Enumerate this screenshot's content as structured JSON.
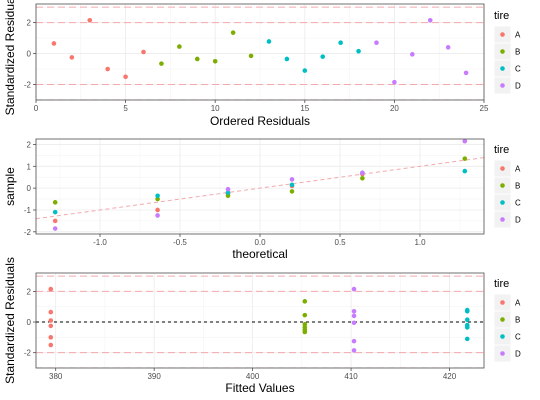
{
  "chart_data": [
    {
      "type": "scatter",
      "xlabel": "Ordered Residuals",
      "ylabel": "Standardized Residuals",
      "xlim": [
        0,
        25
      ],
      "ylim": [
        -3.0,
        3.2
      ],
      "x_ticks": [
        0,
        5,
        10,
        15,
        20,
        25
      ],
      "y_ticks": [
        -2,
        0,
        2
      ],
      "hlines": [
        {
          "y": 2,
          "style": "long-dash",
          "color": "#f4a9ad"
        },
        {
          "y": -2,
          "style": "long-dash",
          "color": "#f4a9ad"
        },
        {
          "y": 3,
          "style": "long-dash",
          "color": "#f4a9ad"
        },
        {
          "y": -3,
          "style": "long-dash",
          "color": "#f4a9ad"
        }
      ],
      "legend": {
        "title": "tire",
        "position": "right",
        "entries": [
          "A",
          "B",
          "C",
          "D"
        ]
      },
      "grid": true,
      "series": [
        {
          "name": "A",
          "color": "#f8766d",
          "points": [
            [
              1,
              0.65
            ],
            [
              2,
              -0.25
            ],
            [
              3,
              2.15
            ],
            [
              4,
              -1.0
            ],
            [
              5,
              -1.5
            ],
            [
              6,
              0.1
            ]
          ]
        },
        {
          "name": "B",
          "color": "#7cae00",
          "points": [
            [
              7,
              -0.65
            ],
            [
              8,
              0.45
            ],
            [
              9,
              -0.35
            ],
            [
              10,
              -0.5
            ],
            [
              11,
              1.35
            ],
            [
              12,
              -0.15
            ]
          ]
        },
        {
          "name": "C",
          "color": "#00bfc4",
          "points": [
            [
              13,
              0.78
            ],
            [
              14,
              -0.35
            ],
            [
              15,
              -1.1
            ],
            [
              16,
              -0.2
            ],
            [
              17,
              0.7
            ],
            [
              18,
              0.15
            ]
          ]
        },
        {
          "name": "D",
          "color": "#c77cff",
          "points": [
            [
              19,
              0.7
            ],
            [
              20,
              -1.85
            ],
            [
              21,
              -0.05
            ],
            [
              22,
              2.15
            ],
            [
              23,
              0.4
            ],
            [
              24,
              -1.25
            ]
          ]
        }
      ]
    },
    {
      "type": "scatter",
      "xlabel": "theoretical",
      "ylabel": "sample",
      "xlim": [
        -1.4,
        1.4
      ],
      "ylim": [
        -2.1,
        2.25
      ],
      "x_ticks": [
        -1.0,
        -0.5,
        0.0,
        0.5,
        1.0
      ],
      "x_tick_labels": [
        "-1.0",
        "-0.5",
        "0.0",
        "0.5",
        "1.0"
      ],
      "y_ticks": [
        -2,
        -1,
        0,
        1,
        2
      ],
      "reference_line": {
        "slope": 1,
        "intercept": 0,
        "style": "dashed",
        "color": "#f4a9ad"
      },
      "legend": {
        "title": "tire",
        "position": "right",
        "entries": [
          "A",
          "B",
          "C",
          "D"
        ]
      },
      "grid": true,
      "series": [
        {
          "name": "A",
          "color": "#f8766d",
          "points": [
            [
              -1.28,
              -1.5
            ],
            [
              -0.64,
              -1.0
            ],
            [
              -0.2,
              -0.25
            ],
            [
              0.2,
              0.1
            ],
            [
              0.64,
              0.65
            ],
            [
              1.28,
              2.15
            ]
          ]
        },
        {
          "name": "B",
          "color": "#7cae00",
          "points": [
            [
              -1.28,
              -0.65
            ],
            [
              -0.64,
              -0.5
            ],
            [
              -0.2,
              -0.35
            ],
            [
              0.2,
              -0.15
            ],
            [
              0.64,
              0.45
            ],
            [
              1.28,
              1.35
            ]
          ]
        },
        {
          "name": "C",
          "color": "#00bfc4",
          "points": [
            [
              -1.28,
              -1.1
            ],
            [
              -0.64,
              -0.35
            ],
            [
              -0.2,
              -0.2
            ],
            [
              0.2,
              0.15
            ],
            [
              0.64,
              0.7
            ],
            [
              1.28,
              0.78
            ]
          ]
        },
        {
          "name": "D",
          "color": "#c77cff",
          "points": [
            [
              -1.28,
              -1.85
            ],
            [
              -0.64,
              -1.25
            ],
            [
              -0.2,
              -0.05
            ],
            [
              0.2,
              0.4
            ],
            [
              0.64,
              0.7
            ],
            [
              1.28,
              2.15
            ]
          ]
        }
      ]
    },
    {
      "type": "scatter",
      "xlabel": "Fitted Values",
      "ylabel": "Standardized Residuals",
      "xlim": [
        378.0,
        423.5
      ],
      "ylim": [
        -3.0,
        3.2
      ],
      "x_ticks": [
        380,
        390,
        400,
        410,
        420
      ],
      "y_ticks": [
        -2,
        0,
        2
      ],
      "hlines": [
        {
          "y": 0,
          "style": "dashed",
          "color": "#000000"
        },
        {
          "y": 2,
          "style": "long-dash",
          "color": "#f4a9ad"
        },
        {
          "y": -2,
          "style": "long-dash",
          "color": "#f4a9ad"
        },
        {
          "y": 3,
          "style": "long-dash",
          "color": "#f4a9ad"
        },
        {
          "y": -3,
          "style": "long-dash",
          "color": "#f4a9ad"
        }
      ],
      "legend": {
        "title": "tire",
        "position": "right",
        "entries": [
          "A",
          "B",
          "C",
          "D"
        ]
      },
      "grid": true,
      "series": [
        {
          "name": "A",
          "color": "#f8766d",
          "points": [
            [
              379.5,
              2.15
            ],
            [
              379.5,
              0.65
            ],
            [
              379.5,
              0.1
            ],
            [
              379.5,
              -0.25
            ],
            [
              379.5,
              -1.0
            ],
            [
              379.5,
              -1.5
            ]
          ]
        },
        {
          "name": "B",
          "color": "#7cae00",
          "points": [
            [
              405.3,
              1.35
            ],
            [
              405.3,
              0.45
            ],
            [
              405.3,
              -0.15
            ],
            [
              405.3,
              -0.35
            ],
            [
              405.3,
              -0.5
            ],
            [
              405.3,
              -0.65
            ]
          ]
        },
        {
          "name": "C",
          "color": "#00bfc4",
          "points": [
            [
              421.8,
              0.78
            ],
            [
              421.8,
              0.7
            ],
            [
              421.8,
              0.15
            ],
            [
              421.8,
              -0.2
            ],
            [
              421.8,
              -0.35
            ],
            [
              421.8,
              -1.1
            ]
          ]
        },
        {
          "name": "D",
          "color": "#c77cff",
          "points": [
            [
              410.3,
              2.15
            ],
            [
              410.3,
              0.7
            ],
            [
              410.3,
              0.4
            ],
            [
              410.3,
              -0.05
            ],
            [
              410.3,
              -1.25
            ],
            [
              410.3,
              -1.85
            ]
          ]
        }
      ]
    }
  ]
}
